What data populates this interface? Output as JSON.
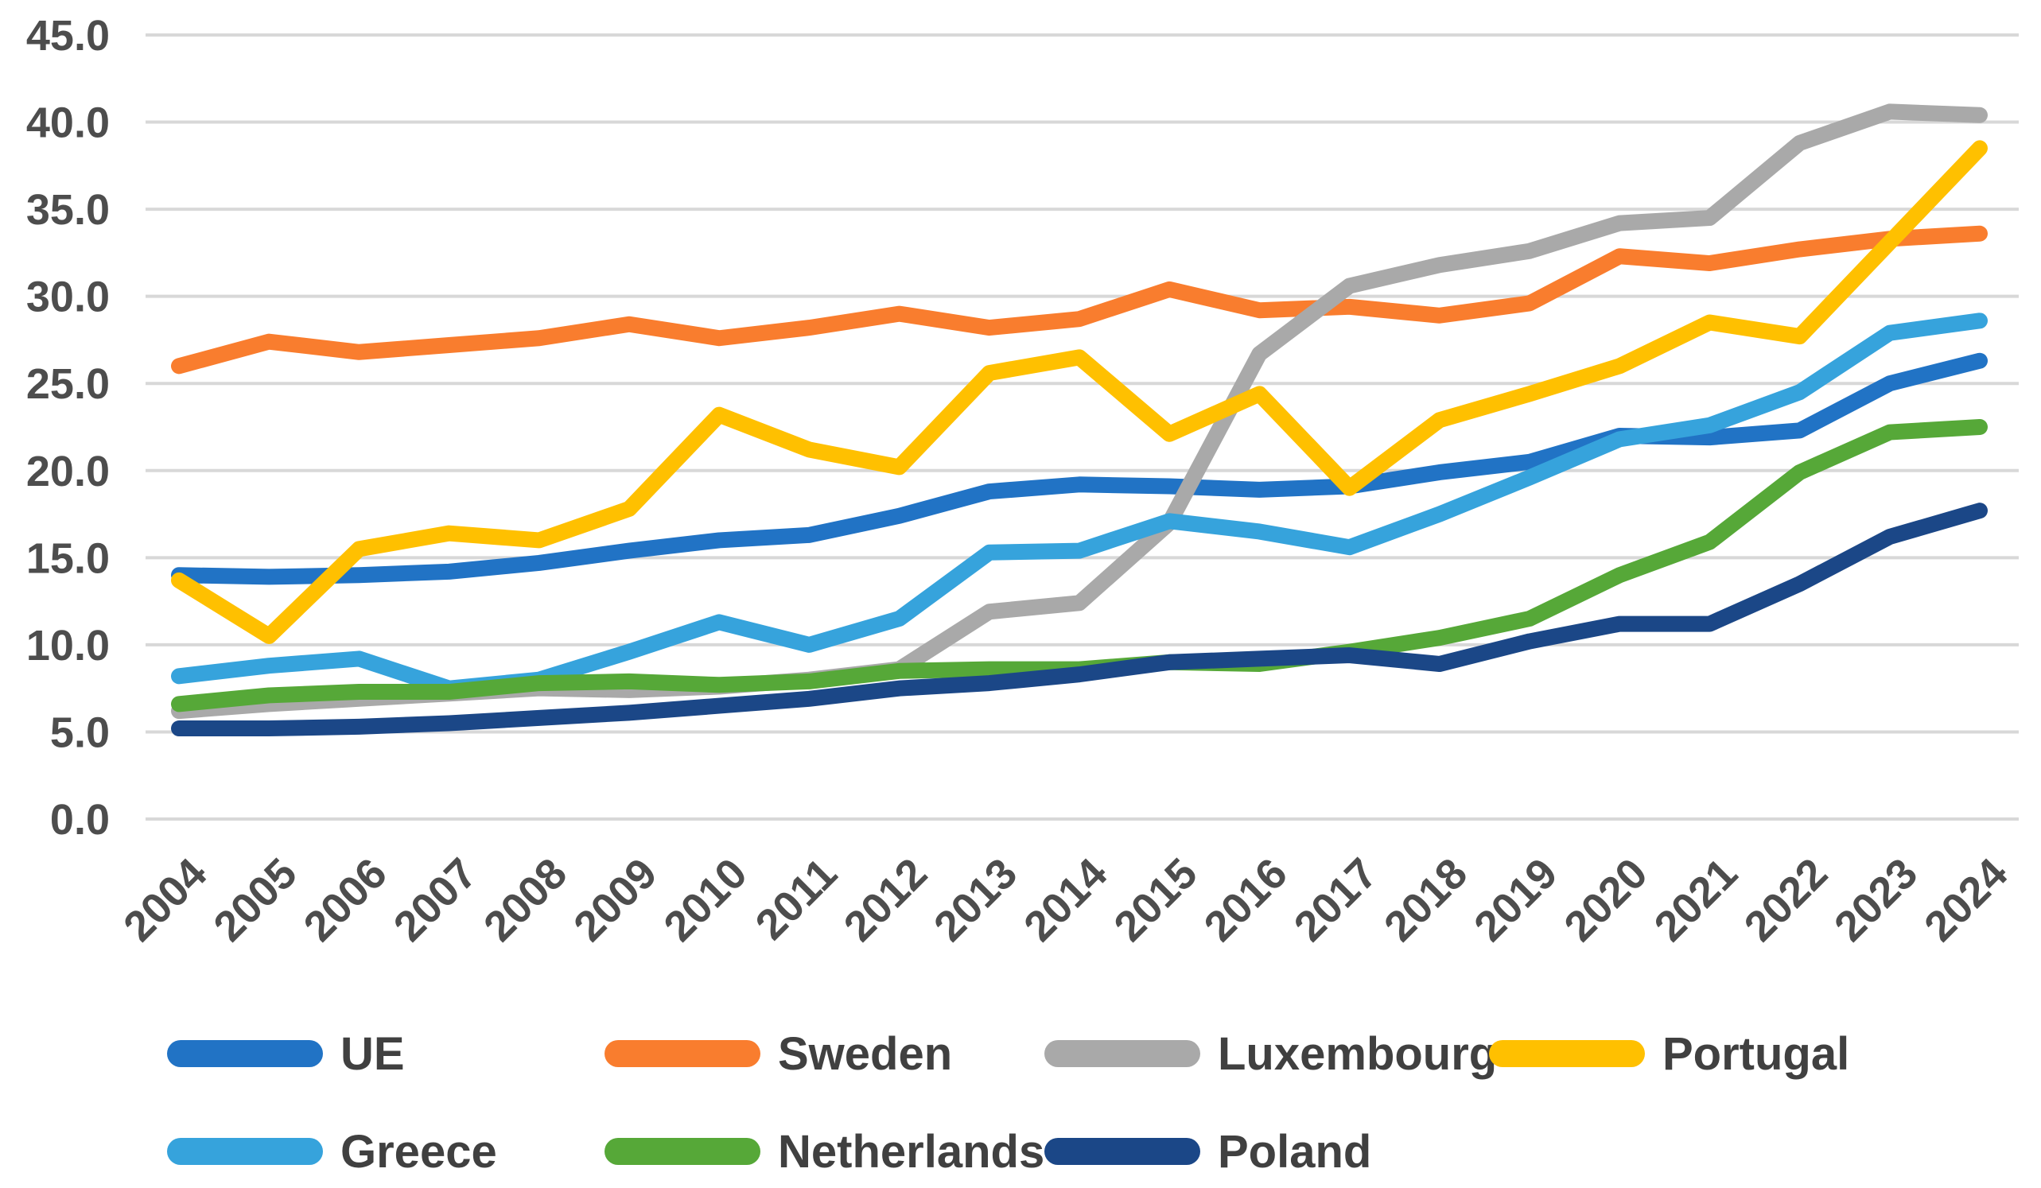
{
  "chart_data": {
    "type": "line",
    "title": "",
    "xlabel": "",
    "ylabel": "",
    "x": [
      2004,
      2005,
      2006,
      2007,
      2008,
      2009,
      2010,
      2011,
      2012,
      2013,
      2014,
      2015,
      2016,
      2017,
      2018,
      2019,
      2020,
      2021,
      2022,
      2023,
      2024
    ],
    "x_tick_labels": [
      "2004",
      "2005",
      "2006",
      "2007",
      "2008",
      "2009",
      "2010",
      "2011",
      "2012",
      "2013",
      "2014",
      "2015",
      "2016",
      "2017",
      "2018",
      "2019",
      "2020",
      "2021",
      "2022",
      "2023",
      "2024"
    ],
    "ylim": [
      0,
      45
    ],
    "y_tick_step": 5,
    "y_tick_labels": [
      "0.0",
      "5.0",
      "10.0",
      "15.0",
      "20.0",
      "25.0",
      "30.0",
      "35.0",
      "40.0",
      "45.0"
    ],
    "grid": "horizontal",
    "legend_position": "bottom",
    "series": [
      {
        "name": "UE",
        "color": "#2173C5",
        "values": [
          14.0,
          13.9,
          14.0,
          14.2,
          14.7,
          15.4,
          16.0,
          16.3,
          17.4,
          18.8,
          19.2,
          19.1,
          18.9,
          19.1,
          19.9,
          20.5,
          22.0,
          21.9,
          22.3,
          25.0,
          26.3
        ]
      },
      {
        "name": "Sweden",
        "color": "#F97D2E",
        "values": [
          26.0,
          27.4,
          26.8,
          27.2,
          27.6,
          28.4,
          27.6,
          28.2,
          29.0,
          28.2,
          28.7,
          30.4,
          29.2,
          29.4,
          28.9,
          29.6,
          32.3,
          31.9,
          32.7,
          33.3,
          33.6
        ]
      },
      {
        "name": "Luxembourg",
        "color": "#A9A9A9",
        "values": [
          6.2,
          6.6,
          6.9,
          7.2,
          7.5,
          7.4,
          7.6,
          8.0,
          8.6,
          11.9,
          12.4,
          17.0,
          26.7,
          30.6,
          31.8,
          32.6,
          34.2,
          34.5,
          38.8,
          40.6,
          40.4
        ]
      },
      {
        "name": "Portugal",
        "color": "#FFC000",
        "values": [
          13.7,
          10.5,
          15.5,
          16.4,
          16.0,
          17.8,
          23.2,
          21.2,
          20.2,
          25.6,
          26.5,
          22.1,
          24.4,
          19.0,
          22.9,
          24.4,
          26.0,
          28.5,
          27.7,
          33.1,
          38.5
        ]
      },
      {
        "name": "Greece",
        "color": "#36A3DC",
        "values": [
          8.2,
          8.8,
          9.2,
          7.5,
          8.0,
          9.6,
          11.3,
          10.0,
          11.5,
          15.3,
          15.4,
          17.1,
          16.5,
          15.6,
          17.5,
          19.6,
          21.8,
          22.6,
          24.5,
          27.9,
          28.6
        ]
      },
      {
        "name": "Netherlands",
        "color": "#56A838",
        "values": [
          6.6,
          7.1,
          7.3,
          7.3,
          7.8,
          7.9,
          7.7,
          7.9,
          8.5,
          8.6,
          8.6,
          9.0,
          8.9,
          9.6,
          10.4,
          11.5,
          14.0,
          15.9,
          19.9,
          22.2,
          22.5
        ]
      },
      {
        "name": "Poland",
        "color": "#1B4787",
        "values": [
          5.2,
          5.2,
          5.3,
          5.5,
          5.8,
          6.1,
          6.5,
          6.9,
          7.5,
          7.8,
          8.3,
          9.0,
          9.2,
          9.4,
          8.9,
          10.2,
          11.2,
          11.2,
          13.5,
          16.2,
          17.7
        ]
      }
    ],
    "legend_rows": [
      [
        "UE",
        "Sweden",
        "Luxembourg",
        "Portugal"
      ],
      [
        "Greece",
        "Netherlands",
        "Poland"
      ]
    ]
  },
  "style": {
    "grid_color": "#D8D8D8",
    "tick_text_color": "#4D4D4D",
    "legend_text_color": "#404040",
    "background": "#FFFFFF"
  }
}
